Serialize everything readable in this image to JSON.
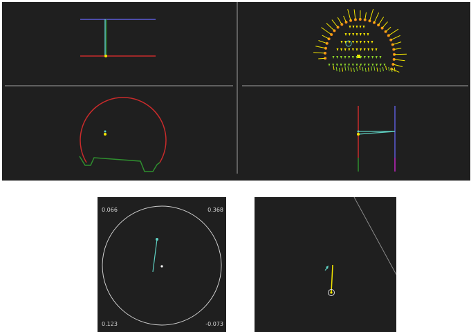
{
  "colors": {
    "background": "#1f1f1f",
    "divider": "#777777",
    "blue_line": "#5b5bd6",
    "red_line": "#c92b2b",
    "teal_line": "#5fd0c2",
    "green_line": "#2f8f2f",
    "magenta_line": "#c425c4",
    "yellow": "#f4e600",
    "orange": "#f08a1a",
    "circle_gray": "#cfcfcf"
  },
  "polar_panel": {
    "corner_top_left": "0.066",
    "corner_top_right": "0.368",
    "corner_bottom_left": "0.123",
    "corner_bottom_right": "-0.073"
  }
}
